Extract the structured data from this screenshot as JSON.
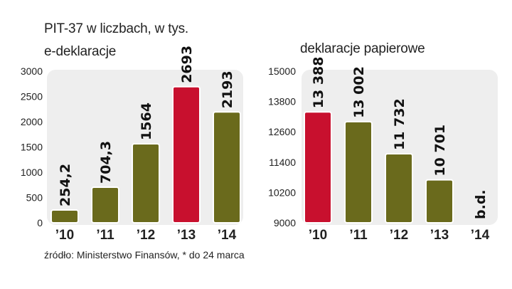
{
  "title": "PIT-37 w liczbach,  w tys.",
  "source": "źródło: Ministerstwo Finansów, * do 24 marca",
  "colors": {
    "panel": "#eeeeee",
    "olive": "#6a6a1c",
    "red": "#c8102e",
    "bar_outline": "#ffffff"
  },
  "chart_data": [
    {
      "type": "bar",
      "title": "e-deklaracje",
      "categories": [
        "’10",
        "’11",
        "’12",
        "’13",
        "’14"
      ],
      "values": [
        254.2,
        704.3,
        1564,
        2693,
        2193
      ],
      "value_labels": [
        "254,2",
        "704,3",
        "1564",
        "2693",
        "2193"
      ],
      "highlight": [
        false,
        false,
        false,
        true,
        false
      ],
      "ylim": [
        0,
        3000
      ],
      "yticks": [
        0,
        500,
        1000,
        1500,
        2000,
        2500,
        3000
      ],
      "ytick_labels": [
        "0",
        "500",
        "1000",
        "1500",
        "2000",
        "2500",
        "3000"
      ],
      "grid": false,
      "xlabel": "",
      "ylabel": ""
    },
    {
      "type": "bar",
      "title": "deklaracje papierowe",
      "categories": [
        "’10",
        "’11",
        "’12",
        "’13",
        "’14"
      ],
      "values": [
        13388,
        13002,
        11732,
        10701,
        null
      ],
      "value_labels": [
        "13 388",
        "13 002",
        "11 732",
        "10 701",
        "b.d."
      ],
      "highlight": [
        true,
        false,
        false,
        false,
        false
      ],
      "ylim": [
        9000,
        15000
      ],
      "yticks": [
        9000,
        10200,
        11400,
        12600,
        13800,
        15000
      ],
      "ytick_labels": [
        "9000",
        "10200",
        "11400",
        "12600",
        "13800",
        "15000"
      ],
      "grid": false,
      "xlabel": "",
      "ylabel": ""
    }
  ]
}
